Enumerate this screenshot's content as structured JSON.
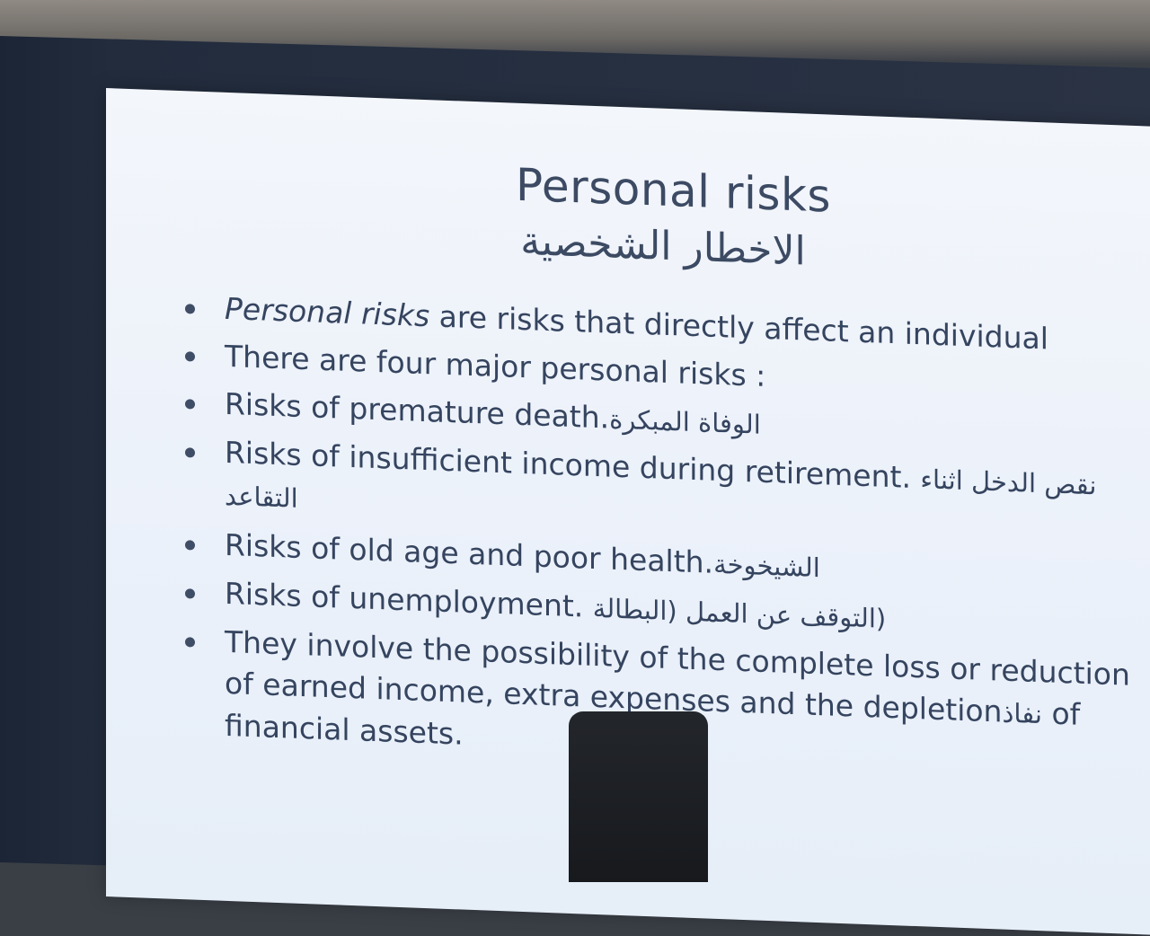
{
  "slide": {
    "title_en": "Personal risks",
    "title_ar": "الاخطار الشخصية",
    "bullets": [
      {
        "em": "Personal risks",
        "text": "  are risks that directly affect an individual",
        "ar": ""
      },
      {
        "em": "",
        "text": "There are four major personal risks :",
        "ar": ""
      },
      {
        "em": "",
        "text": "Risks of premature death.",
        "ar": "الوفاة المبكرة"
      },
      {
        "em": "",
        "text": "Risks of insufficient income during retirement. ",
        "ar": "نقص الدخل اثناء التقاعد"
      },
      {
        "em": "",
        "text": "Risks of old age and poor health.",
        "ar": "الشيخوخة"
      },
      {
        "em": "",
        "text": "Risks of unemployment. ",
        "ar": "(التوقف عن العمل (البطالة"
      },
      {
        "em": "",
        "text": "They involve the possibility of the complete loss or reduction of earned income, extra expenses and the depletion",
        "ar": "نفاذ",
        "tail": " of financial assets."
      }
    ]
  },
  "colors": {
    "slide_bg": "#eef3fa",
    "text": "#35445f",
    "bezel": "#222c3d"
  }
}
